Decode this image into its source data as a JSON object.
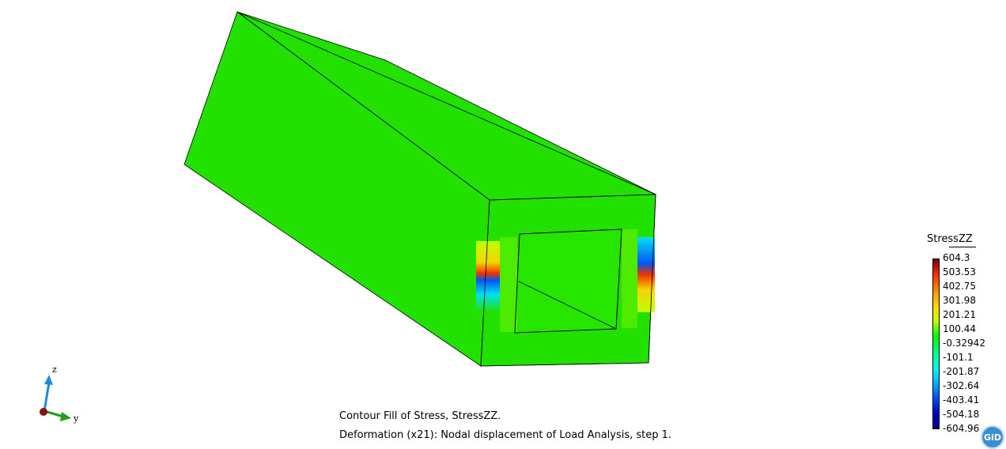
{
  "captions": {
    "line1": "Contour Fill of Stress, StressZZ.",
    "line2": "Deformation (x21): Nodal displacement of Load Analysis, step 1."
  },
  "legend": {
    "title": "StressZZ",
    "labels": [
      "604.3",
      "503.53",
      "402.75",
      "301.98",
      "201.21",
      "100.44",
      "-0.32942",
      "-101.1",
      "-201.87",
      "-302.64",
      "-403.41",
      "-504.18",
      "-604.96"
    ],
    "gradient_colors": [
      "#7a0000",
      "#ff2a00",
      "#ff8c00",
      "#ffd400",
      "#c8ff00",
      "#00ff00",
      "#00ff80",
      "#00ffe0",
      "#00b4ff",
      "#0050ff",
      "#0000cc",
      "#000080"
    ]
  },
  "axes": {
    "z_label": "z",
    "y_label": "y"
  },
  "logo": "GiD",
  "colors": {
    "mesh_green": "#22e000",
    "background": "#ffffff"
  }
}
